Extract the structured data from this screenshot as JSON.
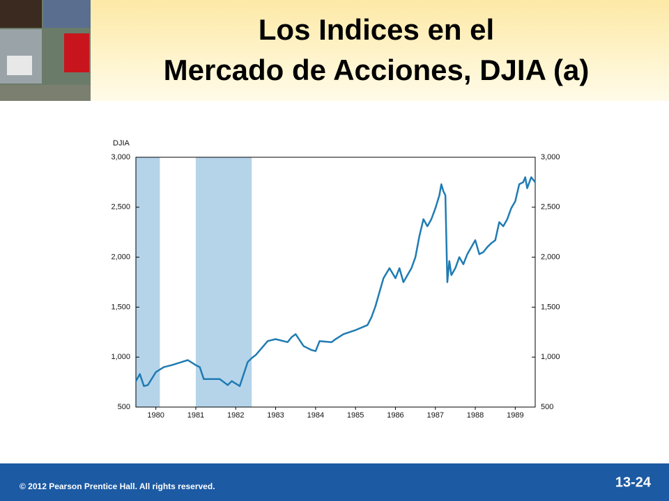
{
  "header": {
    "title_line1": "Los Indices en el",
    "title_line2": "Mercado de Acciones, DJIA (a)"
  },
  "footer": {
    "copyright": "© 2012 Pearson Prentice Hall. All rights reserved.",
    "slide_number": "13-24"
  },
  "chart_data": {
    "type": "line",
    "y_label": "DJIA",
    "xlim": [
      1980,
      1990
    ],
    "xticks": [
      {
        "value": 1980.5,
        "label": "1980"
      },
      {
        "value": 1981.5,
        "label": "1981"
      },
      {
        "value": 1982.5,
        "label": "1982"
      },
      {
        "value": 1983.5,
        "label": "1983"
      },
      {
        "value": 1984.5,
        "label": "1984"
      },
      {
        "value": 1985.5,
        "label": "1985"
      },
      {
        "value": 1986.5,
        "label": "1986"
      },
      {
        "value": 1987.5,
        "label": "1987"
      },
      {
        "value": 1988.5,
        "label": "1988"
      },
      {
        "value": 1989.5,
        "label": "1989"
      }
    ],
    "ylim": [
      500,
      3000
    ],
    "yticks": [
      500,
      {
        "value": 1000,
        "label": "1,000"
      },
      {
        "value": 1500,
        "label": "1,500"
      },
      {
        "value": 2000,
        "label": "2,000"
      },
      {
        "value": 2500,
        "label": "2,500"
      },
      {
        "value": 3000,
        "label": "3,000"
      }
    ],
    "y2lim": [
      500,
      3000
    ],
    "y2ticks": [
      500,
      {
        "value": 1000,
        "label": "1,000"
      },
      {
        "value": 1500,
        "label": "1,500"
      },
      {
        "value": 2000,
        "label": "2,000"
      },
      {
        "value": 2500,
        "label": "2,500"
      },
      {
        "value": 3000,
        "label": "3,000"
      }
    ],
    "shaded_regions": [
      [
        1980.0,
        1980.6
      ],
      [
        1981.5,
        1982.9
      ]
    ],
    "shade_color": "#b5d4ea",
    "x": [
      1980.0,
      1980.1,
      1980.2,
      1980.3,
      1980.5,
      1980.7,
      1980.9,
      1981.3,
      1981.5,
      1981.6,
      1981.7,
      1981.9,
      1982.1,
      1982.3,
      1982.4,
      1982.6,
      1982.8,
      1982.9,
      1983.0,
      1983.3,
      1983.5,
      1983.8,
      1983.9,
      1984.0,
      1984.2,
      1984.4,
      1984.5,
      1984.6,
      1984.9,
      1985.0,
      1985.2,
      1985.5,
      1985.8,
      1985.9,
      1986.0,
      1986.1,
      1986.2,
      1986.35,
      1986.5,
      1986.6,
      1986.7,
      1986.9,
      1987.0,
      1987.1,
      1987.2,
      1987.3,
      1987.4,
      1987.5,
      1987.6,
      1987.65,
      1987.7,
      1987.75,
      1987.8,
      1987.85,
      1987.9,
      1988.0,
      1988.1,
      1988.2,
      1988.3,
      1988.4,
      1988.5,
      1988.6,
      1988.7,
      1988.8,
      1988.9,
      1989.0,
      1989.1,
      1989.2,
      1989.3,
      1989.4,
      1989.5,
      1989.6,
      1989.7,
      1989.75,
      1989.8,
      1989.9,
      1990.0
    ],
    "series": [
      {
        "name": "DJIA",
        "color": "#1f7bb3",
        "values": [
          760,
          830,
          710,
          720,
          850,
          900,
          920,
          970,
          920,
          900,
          780,
          780,
          780,
          720,
          760,
          710,
          950,
          990,
          1020,
          1160,
          1180,
          1150,
          1200,
          1230,
          1110,
          1070,
          1060,
          1160,
          1150,
          1180,
          1230,
          1270,
          1320,
          1400,
          1510,
          1650,
          1790,
          1890,
          1790,
          1890,
          1750,
          1890,
          2000,
          2210,
          2380,
          2310,
          2380,
          2490,
          2620,
          2730,
          2660,
          2620,
          1750,
          1960,
          1820,
          1890,
          2000,
          1930,
          2030,
          2100,
          2170,
          2030,
          2050,
          2100,
          2140,
          2170,
          2350,
          2310,
          2380,
          2490,
          2560,
          2730,
          2750,
          2800,
          2690,
          2800,
          2750
        ]
      }
    ]
  }
}
